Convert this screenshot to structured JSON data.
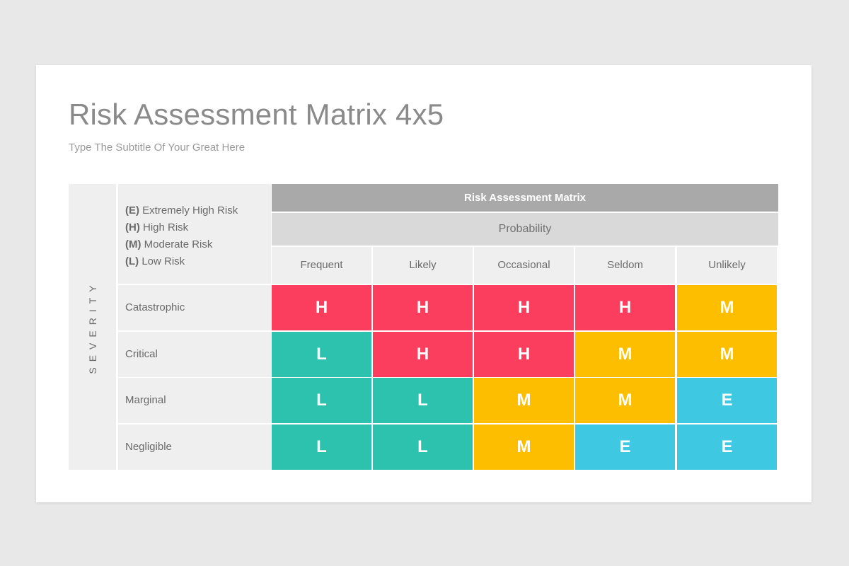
{
  "slide": {
    "title": "Risk Assessment Matrix 4x5",
    "subtitle": "Type The Subtitle Of Your Great Here"
  },
  "severity_label": "SEVERITY",
  "legend": [
    {
      "code": "(E)",
      "text": " Extremely High Risk"
    },
    {
      "code": "(H)",
      "text": " High Risk"
    },
    {
      "code": "(M)",
      "text": " Moderate Risk"
    },
    {
      "code": "(L)",
      "text": " Low Risk"
    }
  ],
  "matrix": {
    "header": "Risk Assessment Matrix",
    "probability_label": "Probability",
    "columns": [
      "Frequent",
      "Likely",
      "Occasional",
      "Seldom",
      "Unlikely"
    ],
    "rows": [
      {
        "label": "Catastrophic",
        "cells": [
          "H",
          "H",
          "H",
          "H",
          "M"
        ]
      },
      {
        "label": "Critical",
        "cells": [
          "L",
          "H",
          "H",
          "M",
          "M"
        ]
      },
      {
        "label": "Marginal",
        "cells": [
          "L",
          "L",
          "M",
          "M",
          "E"
        ]
      },
      {
        "label": "Negligible",
        "cells": [
          "L",
          "L",
          "M",
          "E",
          "E"
        ]
      }
    ]
  },
  "colors": {
    "H": "#fb3d5e",
    "M": "#fdbe00",
    "L": "#2cc2ad",
    "E": "#3ec8e2"
  }
}
